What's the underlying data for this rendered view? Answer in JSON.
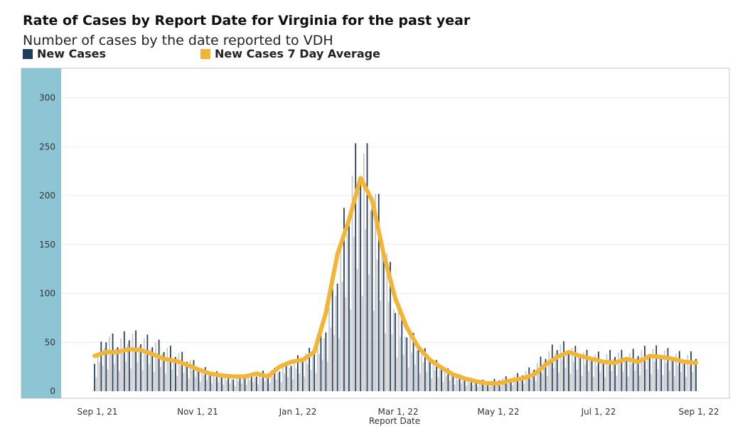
{
  "chart_data": {
    "type": "bar",
    "title": "Rate of Cases by Report Date for Virginia for the past year",
    "subtitle": "Number of cases by the date reported to VDH",
    "xlabel": "Report Date",
    "ylabel": "",
    "ylim": [
      0,
      320
    ],
    "yticks": [
      0,
      50,
      100,
      150,
      200,
      250,
      300
    ],
    "xticks": [
      "Sep 1, 21",
      "Nov 1, 21",
      "Jan 1, 22",
      "Mar 1, 22",
      "May 1, 22",
      "Jul 1, 22",
      "Sep 1, 22"
    ],
    "grid": "horizontal",
    "legend_placement": "top-left",
    "colors": {
      "bar_dark": "#1f3a5f",
      "bar_light": "#c8c8c8",
      "line": "#f2b536",
      "band": "#8ec5d4"
    },
    "series": [
      {
        "name": "New Cases",
        "type": "bar",
        "weekly_values": [
          28,
          50,
          45,
          52,
          48,
          45,
          40,
          35,
          30,
          22,
          18,
          15,
          12,
          14,
          15,
          18,
          20,
          26,
          32,
          38,
          60,
          110,
          180,
          220,
          190,
          140,
          80,
          55,
          42,
          30,
          22,
          16,
          12,
          10,
          9,
          11,
          13,
          16,
          22,
          33,
          42,
          40,
          35,
          33,
          32,
          35,
          33,
          36,
          38,
          37,
          34,
          32,
          33
        ]
      },
      {
        "name": "New Cases 7 Day Average",
        "type": "line",
        "weekly_values": [
          36,
          40,
          40,
          43,
          42,
          38,
          33,
          31,
          27,
          22,
          18,
          16,
          15,
          15,
          18,
          15,
          25,
          30,
          32,
          40,
          80,
          140,
          175,
          218,
          195,
          140,
          95,
          65,
          45,
          32,
          24,
          17,
          13,
          10,
          8,
          8,
          11,
          13,
          17,
          27,
          35,
          40,
          36,
          33,
          30,
          29,
          33,
          30,
          36,
          35,
          33,
          30,
          29
        ]
      }
    ]
  }
}
